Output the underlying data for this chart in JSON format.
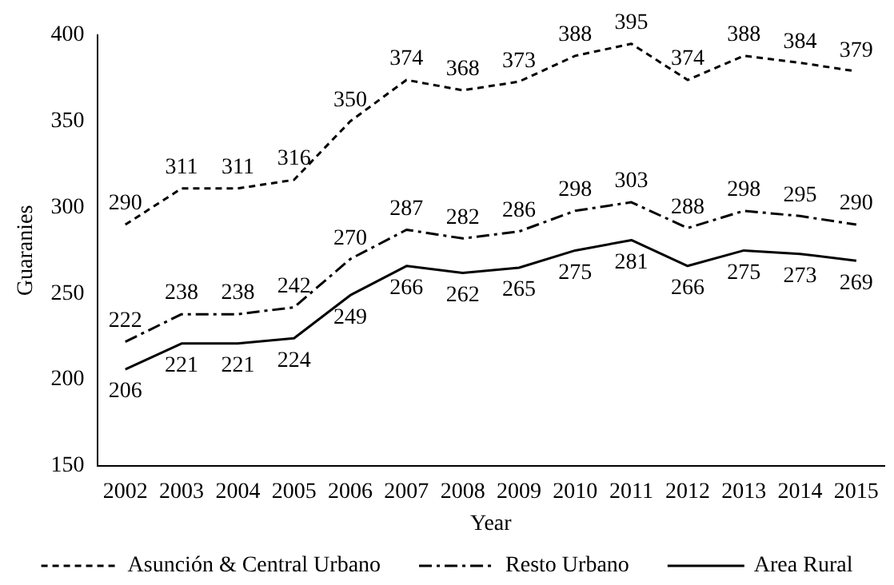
{
  "chart_data": {
    "type": "line",
    "xlabel": "Year",
    "ylabel": "Guaranies",
    "categories": [
      "2002",
      "2003",
      "2004",
      "2005",
      "2006",
      "2007",
      "2008",
      "2009",
      "2010",
      "2011",
      "2012",
      "2013",
      "2014",
      "2015"
    ],
    "series": [
      {
        "name": "Asunción & Central Urbano",
        "color": "#000000",
        "line_style": "dashed",
        "values": [
          290,
          311,
          311,
          316,
          350,
          374,
          368,
          373,
          388,
          395,
          374,
          388,
          384,
          379
        ]
      },
      {
        "name": "Resto Urbano",
        "color": "#000000",
        "line_style": "dashdot",
        "values": [
          222,
          238,
          238,
          242,
          270,
          287,
          282,
          286,
          298,
          303,
          288,
          298,
          295,
          290
        ]
      },
      {
        "name": "Area Rural",
        "color": "#000000",
        "line_style": "solid",
        "values": [
          206,
          221,
          221,
          224,
          249,
          266,
          262,
          265,
          275,
          281,
          266,
          275,
          273,
          269
        ]
      }
    ],
    "ylim": [
      150,
      400
    ],
    "yticks": [
      150,
      200,
      250,
      300,
      350,
      400
    ],
    "grid": false,
    "legend": "bottom",
    "marker": "none",
    "data_labels": true
  }
}
